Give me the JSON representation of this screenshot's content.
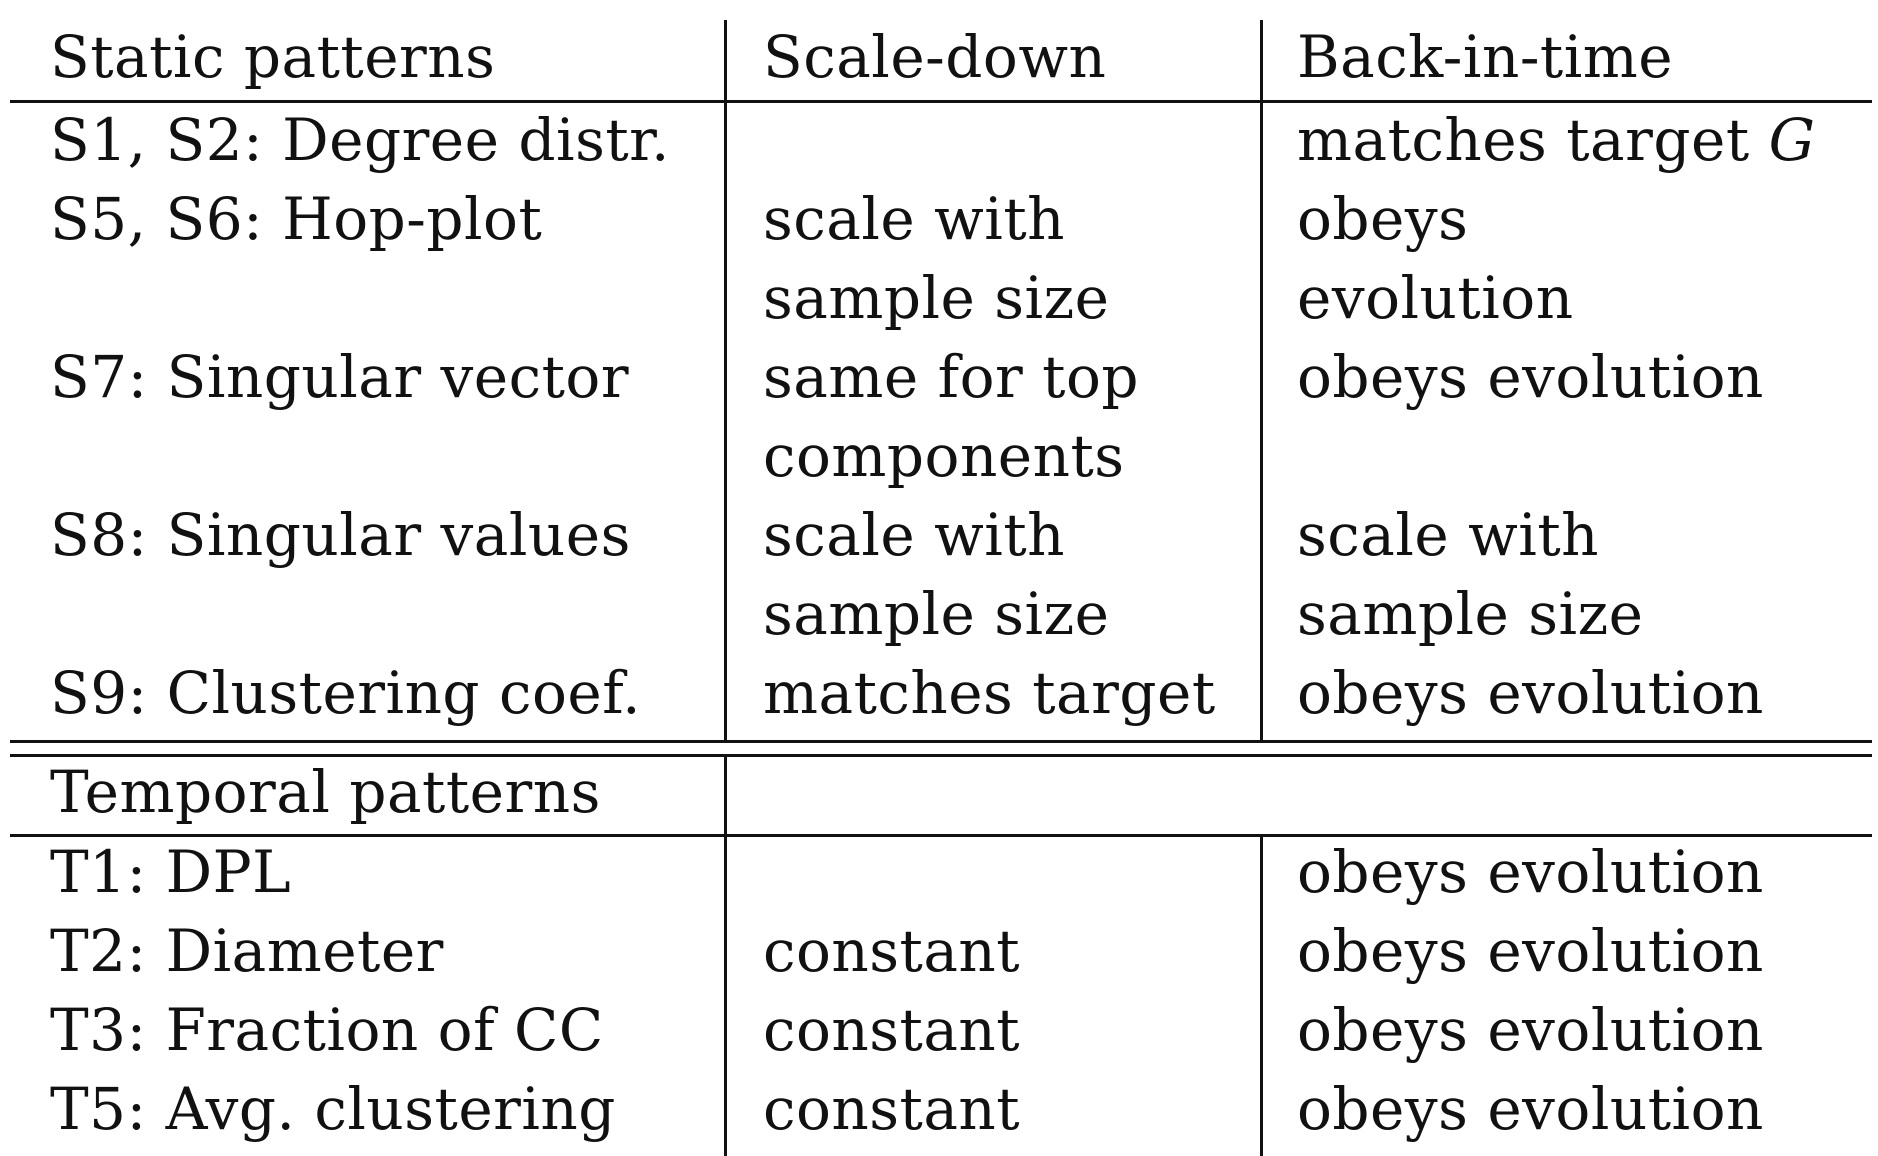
{
  "header": {
    "col1": "Static patterns",
    "col2": "Scale-down",
    "col3": "Back-in-time"
  },
  "static_rows": [
    {
      "name": "S1, S2: Degree distr.",
      "scale_down": [
        "",
        ""
      ],
      "back_in_time": [
        "matches target ",
        "G"
      ]
    },
    {
      "name": "S5, S6: Hop-plot",
      "scale_down": [
        "scale with",
        "sample size"
      ],
      "back_in_time": [
        "obeys",
        "evolution"
      ]
    },
    {
      "name": "S7: Singular vector",
      "scale_down": [
        "same for top",
        "components"
      ],
      "back_in_time": [
        "obeys evolution",
        ""
      ]
    },
    {
      "name": "S8: Singular values",
      "scale_down": [
        "scale with",
        "sample size"
      ],
      "back_in_time": [
        "scale with",
        "sample size"
      ]
    },
    {
      "name": "S9: Clustering coef.",
      "scale_down": [
        "matches target",
        ""
      ],
      "back_in_time": [
        "obeys evolution",
        ""
      ]
    }
  ],
  "temporal_header": "Temporal patterns",
  "temporal_rows": [
    {
      "name": "T1: DPL",
      "scale_down": "",
      "back_in_time": "obeys evolution"
    },
    {
      "name": "T2: Diameter",
      "scale_down": "constant",
      "back_in_time": "obeys evolution"
    },
    {
      "name": "T3: Fraction of CC",
      "scale_down": "constant",
      "back_in_time": "obeys evolution"
    },
    {
      "name": "T5: Avg. clustering",
      "scale_down": "constant",
      "back_in_time": "obeys evolution"
    }
  ]
}
